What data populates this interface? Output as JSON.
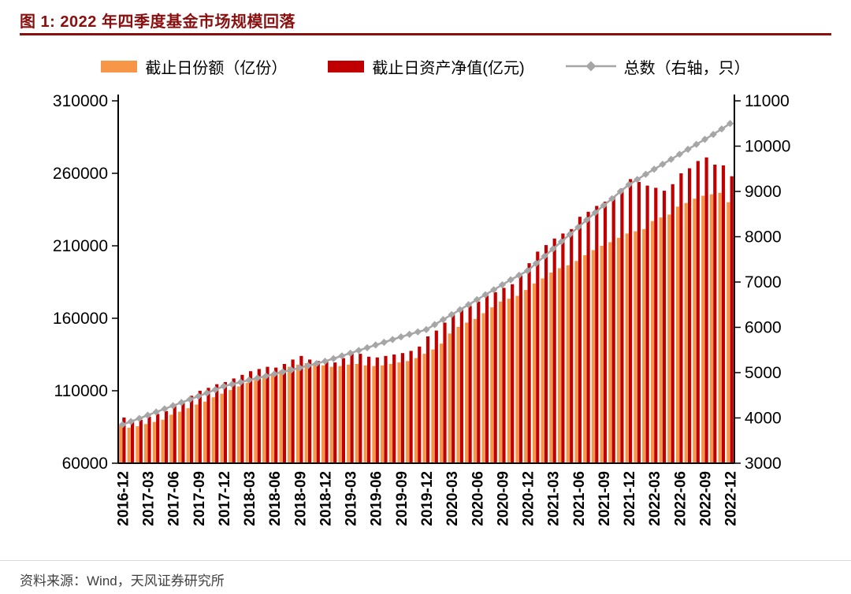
{
  "figure": {
    "title": "图 1: 2022 年四季度基金市场规模回落",
    "source": "资料来源：Wind，天风证券研究所"
  },
  "colors": {
    "title": "#8a0f0f",
    "title_rule": "#8a0f0f",
    "shares_bar": "#F79646",
    "nav_bar": "#C00000",
    "count_line": "#A6A6A6",
    "axis": "#000000"
  },
  "chart_data": {
    "type": "bar+line combo",
    "title": "2022 年四季度基金市场规模回落",
    "legend": [
      {
        "label": "截止日份额（亿份）",
        "type": "bar",
        "color": "#F79646"
      },
      {
        "label": "截止日资产净值(亿元)",
        "type": "bar",
        "color": "#C00000"
      },
      {
        "label": "总数（右轴，只）",
        "type": "line",
        "color": "#A6A6A6"
      }
    ],
    "left_axis": {
      "min": 60000,
      "max": 310000,
      "ticks": [
        60000,
        110000,
        160000,
        210000,
        260000,
        310000
      ]
    },
    "right_axis": {
      "min": 3000,
      "max": 11000,
      "ticks": [
        3000,
        4000,
        5000,
        6000,
        7000,
        8000,
        9000,
        10000,
        11000
      ]
    },
    "x_tick_every": 3,
    "categories": [
      "2016-12",
      "2017-01",
      "2017-02",
      "2017-03",
      "2017-04",
      "2017-05",
      "2017-06",
      "2017-07",
      "2017-08",
      "2017-09",
      "2017-10",
      "2017-11",
      "2017-12",
      "2018-01",
      "2018-02",
      "2018-03",
      "2018-04",
      "2018-05",
      "2018-06",
      "2018-07",
      "2018-08",
      "2018-09",
      "2018-10",
      "2018-11",
      "2018-12",
      "2019-01",
      "2019-02",
      "2019-03",
      "2019-04",
      "2019-05",
      "2019-06",
      "2019-07",
      "2019-08",
      "2019-09",
      "2019-10",
      "2019-11",
      "2019-12",
      "2020-01",
      "2020-02",
      "2020-03",
      "2020-04",
      "2020-05",
      "2020-06",
      "2020-07",
      "2020-08",
      "2020-09",
      "2020-10",
      "2020-11",
      "2020-12",
      "2021-01",
      "2021-02",
      "2021-03",
      "2021-04",
      "2021-05",
      "2021-06",
      "2021-07",
      "2021-08",
      "2021-09",
      "2021-10",
      "2021-11",
      "2021-12",
      "2022-01",
      "2022-02",
      "2022-03",
      "2022-04",
      "2022-05",
      "2022-06",
      "2022-07",
      "2022-08",
      "2022-09",
      "2022-10",
      "2022-11",
      "2022-12"
    ],
    "series": [
      {
        "name": "截止日份额（亿份）",
        "type": "bar",
        "axis": "left",
        "values": [
          86000,
          84500,
          85500,
          87000,
          88500,
          90000,
          93500,
          95500,
          98000,
          100500,
          102500,
          105500,
          108000,
          110500,
          113000,
          115500,
          117500,
          119500,
          121500,
          124000,
          126500,
          128000,
          129000,
          128500,
          127500,
          126500,
          127000,
          128000,
          128500,
          127500,
          127000,
          127500,
          128500,
          129500,
          130500,
          132500,
          135500,
          138500,
          142500,
          149500,
          154000,
          157000,
          159500,
          163500,
          167500,
          171500,
          173500,
          175500,
          179500,
          184000,
          187500,
          191500,
          194500,
          196500,
          199500,
          203500,
          207000,
          210000,
          212500,
          215500,
          218500,
          220000,
          221500,
          227000,
          229500,
          231500,
          237000,
          239500,
          242500,
          244500,
          245500,
          246500,
          240000
        ]
      },
      {
        "name": "截止日资产净值(亿元)",
        "type": "bar",
        "axis": "left",
        "values": [
          91500,
          88500,
          90000,
          92000,
          94000,
          96000,
          100000,
          103000,
          106500,
          110000,
          112000,
          114500,
          116000,
          118500,
          121000,
          123500,
          125000,
          126500,
          126000,
          128500,
          131500,
          134000,
          131500,
          130500,
          130000,
          129500,
          132500,
          137000,
          135500,
          133500,
          133000,
          134000,
          135000,
          136000,
          137500,
          140500,
          147500,
          151500,
          157000,
          163000,
          167000,
          168500,
          171500,
          175500,
          178000,
          181000,
          183500,
          189500,
          198000,
          206000,
          210500,
          215000,
          218500,
          221500,
          230000,
          233500,
          237500,
          240500,
          244000,
          249500,
          256000,
          254000,
          251500,
          250000,
          248000,
          252500,
          260000,
          263500,
          268500,
          271000,
          266000,
          265500,
          258000
        ]
      },
      {
        "name": "总数（右轴，只）",
        "type": "line",
        "axis": "right",
        "values": [
          3850,
          3920,
          3990,
          4060,
          4130,
          4200,
          4270,
          4340,
          4410,
          4480,
          4550,
          4625,
          4700,
          4745,
          4790,
          4835,
          4880,
          4925,
          4970,
          5015,
          5060,
          5105,
          5155,
          5200,
          5250,
          5310,
          5370,
          5430,
          5490,
          5550,
          5610,
          5670,
          5730,
          5790,
          5845,
          5900,
          5950,
          6060,
          6170,
          6280,
          6390,
          6500,
          6610,
          6720,
          6830,
          6940,
          7050,
          7150,
          7250,
          7410,
          7570,
          7730,
          7890,
          8050,
          8210,
          8370,
          8530,
          8690,
          8840,
          9000,
          9150,
          9265,
          9380,
          9490,
          9600,
          9710,
          9820,
          9930,
          10040,
          10150,
          10260,
          10380,
          10500
        ]
      }
    ]
  }
}
